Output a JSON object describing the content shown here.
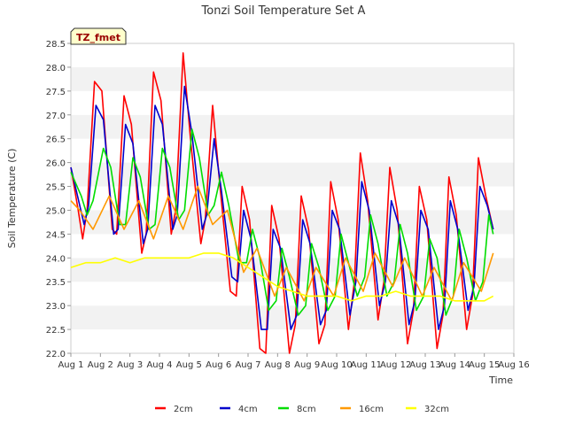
{
  "chart_data": {
    "type": "line",
    "title": "Tonzi Soil Temperature Set A",
    "xlabel": "Time",
    "ylabel": "Soil Temperature (C)",
    "xlim": [
      1,
      16
    ],
    "ylim": [
      22.0,
      28.5
    ],
    "x_ticks": [
      "Aug 1",
      "Aug 2",
      "Aug 3",
      "Aug 4",
      "Aug 5",
      "Aug 6",
      "Aug 7",
      "Aug 8",
      "Aug 9",
      "Aug 10",
      "Aug 11",
      "Aug 12",
      "Aug 13",
      "Aug 14",
      "Aug 15",
      "Aug 16"
    ],
    "y_ticks": [
      "22.0",
      "22.5",
      "23.0",
      "23.5",
      "24.0",
      "24.5",
      "25.0",
      "25.5",
      "26.0",
      "26.5",
      "27.0",
      "27.5",
      "28.0",
      "28.5"
    ],
    "grid": "horizontal bands",
    "legend_position": "bottom",
    "annotation": "TZ_fmet",
    "series": [
      {
        "name": "2cm",
        "color": "#ff0000",
        "x": [
          1.0,
          1.25,
          1.4,
          1.55,
          1.8,
          2.05,
          2.4,
          2.55,
          2.8,
          3.05,
          3.4,
          3.55,
          3.8,
          4.05,
          4.4,
          4.55,
          4.8,
          5.05,
          5.4,
          5.55,
          5.8,
          6.05,
          6.4,
          6.6,
          6.8,
          7.05,
          7.4,
          7.6,
          7.8,
          8.05,
          8.4,
          8.6,
          8.8,
          9.05,
          9.4,
          9.6,
          9.8,
          10.05,
          10.4,
          10.6,
          10.8,
          11.05,
          11.4,
          11.6,
          11.8,
          12.05,
          12.4,
          12.6,
          12.8,
          13.05,
          13.4,
          13.6,
          13.8,
          14.05,
          14.4,
          14.6,
          14.8,
          15.05,
          15.3
        ],
        "values": [
          25.9,
          25.0,
          24.4,
          25.0,
          27.7,
          27.5,
          24.6,
          24.5,
          27.4,
          26.8,
          24.1,
          24.5,
          27.9,
          27.3,
          24.5,
          25.0,
          28.3,
          26.5,
          24.3,
          24.8,
          27.2,
          25.5,
          23.3,
          23.2,
          25.5,
          24.8,
          22.1,
          22.0,
          25.1,
          24.4,
          22.0,
          22.6,
          25.3,
          24.6,
          22.2,
          22.6,
          25.6,
          24.8,
          22.5,
          23.5,
          26.2,
          25.2,
          22.7,
          23.5,
          25.9,
          25.0,
          22.2,
          22.9,
          25.5,
          24.8,
          22.1,
          22.8,
          25.7,
          24.9,
          22.5,
          23.2,
          26.1,
          25.3,
          24.6
        ]
      },
      {
        "name": "4cm",
        "color": "#0000cc",
        "x": [
          1.0,
          1.3,
          1.45,
          1.6,
          1.85,
          2.1,
          2.45,
          2.6,
          2.85,
          3.1,
          3.45,
          3.6,
          3.85,
          4.1,
          4.45,
          4.6,
          4.85,
          5.1,
          5.45,
          5.6,
          5.85,
          6.1,
          6.45,
          6.65,
          6.85,
          7.1,
          7.45,
          7.65,
          7.85,
          8.1,
          8.45,
          8.65,
          8.85,
          9.1,
          9.45,
          9.65,
          9.85,
          10.1,
          10.45,
          10.65,
          10.85,
          11.1,
          11.45,
          11.65,
          11.85,
          12.1,
          12.45,
          12.65,
          12.85,
          13.1,
          13.45,
          13.65,
          13.85,
          14.1,
          14.45,
          14.65,
          14.85,
          15.1,
          15.3
        ],
        "values": [
          25.9,
          25.1,
          24.7,
          25.1,
          27.2,
          26.9,
          24.5,
          24.6,
          26.8,
          26.4,
          24.3,
          24.6,
          27.2,
          26.8,
          24.6,
          24.9,
          27.6,
          26.6,
          24.6,
          24.9,
          26.5,
          25.4,
          23.6,
          23.5,
          25.0,
          24.4,
          22.5,
          22.5,
          24.6,
          24.2,
          22.5,
          22.8,
          24.8,
          24.3,
          22.6,
          22.9,
          25.0,
          24.6,
          22.8,
          23.5,
          25.6,
          25.0,
          23.0,
          23.5,
          25.2,
          24.7,
          22.6,
          23.1,
          25.0,
          24.6,
          22.5,
          23.0,
          25.2,
          24.6,
          22.9,
          23.4,
          25.5,
          25.1,
          24.6
        ]
      },
      {
        "name": "8cm",
        "color": "#00dd00",
        "x": [
          1.0,
          1.35,
          1.55,
          1.75,
          2.1,
          2.35,
          2.65,
          2.85,
          3.1,
          3.35,
          3.65,
          3.85,
          4.1,
          4.35,
          4.65,
          4.85,
          5.1,
          5.35,
          5.65,
          5.85,
          6.1,
          6.35,
          6.7,
          6.95,
          7.15,
          7.4,
          7.7,
          7.95,
          8.15,
          8.4,
          8.7,
          8.95,
          9.15,
          9.4,
          9.7,
          9.95,
          10.15,
          10.4,
          10.7,
          10.95,
          11.15,
          11.4,
          11.7,
          11.95,
          12.15,
          12.4,
          12.7,
          12.95,
          13.15,
          13.4,
          13.7,
          13.95,
          14.15,
          14.4,
          14.7,
          14.95,
          15.15,
          15.3
        ],
        "values": [
          25.8,
          25.3,
          24.9,
          25.2,
          26.3,
          25.9,
          24.7,
          24.7,
          26.1,
          25.7,
          24.6,
          24.7,
          26.3,
          25.9,
          24.8,
          25.0,
          26.7,
          26.1,
          24.9,
          25.1,
          25.8,
          25.1,
          23.9,
          23.9,
          24.6,
          24.0,
          22.9,
          23.1,
          24.2,
          23.6,
          22.8,
          23.0,
          24.3,
          23.8,
          22.9,
          23.2,
          24.5,
          23.9,
          23.2,
          23.6,
          24.9,
          24.3,
          23.2,
          23.5,
          24.7,
          24.1,
          22.9,
          23.2,
          24.4,
          24.0,
          22.8,
          23.2,
          24.6,
          24.0,
          23.1,
          23.5,
          24.9,
          24.5
        ]
      },
      {
        "name": "16cm",
        "color": "#ff9900",
        "x": [
          1.0,
          1.3,
          1.75,
          2.3,
          2.8,
          3.3,
          3.8,
          4.3,
          4.8,
          5.3,
          5.8,
          6.3,
          6.85,
          7.3,
          7.9,
          8.3,
          8.9,
          9.3,
          9.9,
          10.3,
          10.9,
          11.3,
          11.9,
          12.3,
          12.9,
          13.3,
          13.9,
          14.3,
          14.9,
          15.3
        ],
        "values": [
          25.2,
          25.0,
          24.6,
          25.3,
          24.6,
          25.2,
          24.4,
          25.3,
          24.6,
          25.5,
          24.7,
          25.0,
          23.7,
          24.2,
          23.2,
          23.8,
          23.1,
          23.8,
          23.2,
          24.0,
          23.3,
          24.1,
          23.4,
          24.0,
          23.2,
          23.8,
          23.1,
          23.9,
          23.3,
          24.1
        ]
      },
      {
        "name": "32cm",
        "color": "#ffff00",
        "x": [
          1.0,
          1.5,
          2.0,
          2.5,
          3.0,
          3.5,
          4.0,
          4.5,
          5.0,
          5.5,
          6.0,
          6.5,
          7.0,
          7.5,
          8.0,
          8.5,
          9.0,
          9.5,
          10.0,
          10.5,
          11.0,
          11.5,
          12.0,
          12.5,
          13.0,
          13.5,
          14.0,
          14.5,
          15.0,
          15.3
        ],
        "values": [
          23.8,
          23.9,
          23.9,
          24.0,
          23.9,
          24.0,
          24.0,
          24.0,
          24.0,
          24.1,
          24.1,
          24.0,
          23.8,
          23.6,
          23.4,
          23.3,
          23.2,
          23.2,
          23.2,
          23.1,
          23.2,
          23.2,
          23.3,
          23.2,
          23.2,
          23.2,
          23.1,
          23.1,
          23.1,
          23.2
        ]
      }
    ]
  }
}
